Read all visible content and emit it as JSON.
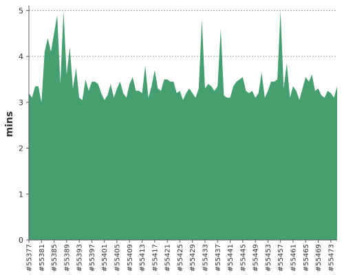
{
  "chart_data": {
    "type": "area",
    "title": "",
    "xlabel": "",
    "ylabel": "mins",
    "ylim": [
      0,
      5.05
    ],
    "yticks": [
      0,
      1,
      2,
      3,
      4,
      5
    ],
    "grid": {
      "horizontal": true,
      "style": "dashed"
    },
    "legend": "none",
    "fill_color": "#459F6E",
    "x": [
      "#55377",
      "#55378",
      "#55379",
      "#55380",
      "#55381",
      "#55382",
      "#55383",
      "#55384",
      "#55385",
      "#55386",
      "#55387",
      "#55388",
      "#55389",
      "#55390",
      "#55391",
      "#55392",
      "#55393",
      "#55394",
      "#55395",
      "#55396",
      "#55397",
      "#55398",
      "#55399",
      "#55400",
      "#55401",
      "#55402",
      "#55403",
      "#55404",
      "#55405",
      "#55406",
      "#55407",
      "#55408",
      "#55409",
      "#55410",
      "#55411",
      "#55412",
      "#55413",
      "#55414",
      "#55415",
      "#55416",
      "#55417",
      "#55418",
      "#55419",
      "#55420",
      "#55421",
      "#55422",
      "#55423",
      "#55424",
      "#55425",
      "#55426",
      "#55427",
      "#55428",
      "#55429",
      "#55430",
      "#55431",
      "#55432",
      "#55433",
      "#55434",
      "#55435",
      "#55436",
      "#55437",
      "#55438",
      "#55439",
      "#55440",
      "#55441",
      "#55442",
      "#55443",
      "#55444",
      "#55445",
      "#55446",
      "#55447",
      "#55448",
      "#55449",
      "#55450",
      "#55451",
      "#55452",
      "#55453",
      "#55454",
      "#55455",
      "#55456",
      "#55457",
      "#55458",
      "#55459",
      "#55460",
      "#55461",
      "#55462",
      "#55463",
      "#55464",
      "#55465",
      "#55466",
      "#55467",
      "#55468",
      "#55469",
      "#55470",
      "#55471",
      "#55472",
      "#55473",
      "#55474",
      "#55475"
    ],
    "x_tick_labels": [
      "#55377",
      "#55381",
      "#55385",
      "#55389",
      "#55393",
      "#55397",
      "#55401",
      "#55405",
      "#55409",
      "#55413",
      "#55417",
      "#55421",
      "#55425",
      "#55429",
      "#55433",
      "#55437",
      "#55441",
      "#55445",
      "#55449",
      "#55453",
      "#55457",
      "#55461",
      "#55465",
      "#55469",
      "#55473"
    ],
    "values": [
      3.2,
      3.1,
      3.35,
      3.35,
      3.0,
      4.1,
      4.4,
      4.1,
      4.5,
      4.9,
      3.4,
      5.0,
      3.6,
      4.2,
      3.3,
      3.75,
      3.1,
      3.05,
      3.5,
      3.25,
      3.45,
      3.45,
      3.4,
      3.2,
      3.05,
      3.15,
      3.4,
      3.1,
      3.3,
      3.45,
      3.2,
      3.1,
      3.4,
      3.55,
      3.25,
      3.25,
      3.2,
      3.8,
      3.1,
      3.35,
      3.7,
      3.3,
      3.25,
      3.5,
      3.5,
      3.45,
      3.45,
      3.2,
      3.25,
      3.05,
      3.2,
      3.3,
      3.2,
      3.1,
      3.3,
      4.8,
      3.3,
      3.4,
      3.35,
      3.25,
      3.35,
      4.6,
      3.15,
      3.1,
      3.1,
      3.35,
      3.45,
      3.5,
      3.55,
      3.25,
      3.2,
      3.25,
      3.1,
      3.2,
      3.65,
      3.1,
      3.25,
      3.45,
      3.45,
      3.5,
      5.0,
      3.3,
      3.85,
      3.1,
      3.35,
      3.25,
      3.05,
      3.3,
      3.55,
      3.45,
      3.6,
      3.25,
      3.3,
      3.15,
      3.1,
      3.25,
      3.2,
      3.1,
      3.35
    ]
  }
}
